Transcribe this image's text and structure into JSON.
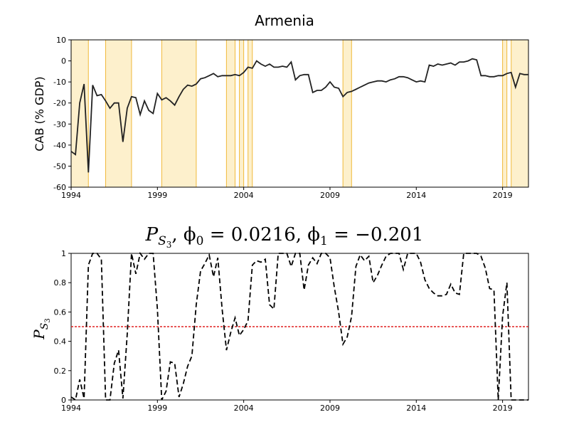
{
  "chart_data": [
    {
      "type": "line",
      "title": "Armenia",
      "ylabel": "CAB (% GDP)",
      "xlabel": "",
      "xlim": [
        1994,
        2020.5
      ],
      "ylim": [
        -60,
        10
      ],
      "xticks": [
        "1994",
        "1999",
        "2004",
        "2009",
        "2014",
        "2019"
      ],
      "yticks": [
        "10",
        "0",
        "-10",
        "-20",
        "-30",
        "-40",
        "-50",
        "-60"
      ],
      "line_color": "#222222",
      "shade_color": "#fdf0cc",
      "shade_edge_color": "#f0b93a",
      "shaded_regions": [
        [
          1994.0,
          1995.0
        ],
        [
          1996.0,
          1997.5
        ],
        [
          1999.25,
          2001.25
        ],
        [
          2003.0,
          2003.5
        ],
        [
          2003.75,
          2004.0
        ],
        [
          2004.25,
          2004.5
        ],
        [
          2009.75,
          2010.25
        ],
        [
          2019.0,
          2019.25
        ],
        [
          2019.5,
          2020.5
        ]
      ],
      "series": [
        {
          "x": [
            1994.0,
            1994.25,
            1994.5,
            1994.75,
            1995.0,
            1995.25,
            1995.5,
            1995.75,
            1996.0,
            1996.25,
            1996.5,
            1996.75,
            1997.0,
            1997.25,
            1997.5,
            1997.75,
            1998.0,
            1998.25,
            1998.5,
            1998.75,
            1999.0,
            1999.25,
            1999.5,
            1999.75,
            2000.0,
            2000.25,
            2000.5,
            2000.75,
            2001.0,
            2001.25,
            2001.5,
            2001.75,
            2002.0,
            2002.25,
            2002.5,
            2002.75,
            2003.0,
            2003.25,
            2003.5,
            2003.75,
            2004.0,
            2004.25,
            2004.5,
            2004.75,
            2005.0,
            2005.25,
            2005.5,
            2005.75,
            2006.0,
            2006.25,
            2006.5,
            2006.75,
            2007.0,
            2007.25,
            2007.5,
            2007.75,
            2008.0,
            2008.25,
            2008.5,
            2008.75,
            2009.0,
            2009.25,
            2009.5,
            2009.75,
            2010.0,
            2010.25,
            2010.5,
            2010.75,
            2011.0,
            2011.25,
            2011.5,
            2011.75,
            2012.0,
            2012.25,
            2012.5,
            2012.75,
            2013.0,
            2013.25,
            2013.5,
            2013.75,
            2014.0,
            2014.25,
            2014.5,
            2014.75,
            2015.0,
            2015.25,
            2015.5,
            2015.75,
            2016.0,
            2016.25,
            2016.5,
            2016.75,
            2017.0,
            2017.25,
            2017.5,
            2017.75,
            2018.0,
            2018.25,
            2018.5,
            2018.75,
            2019.0,
            2019.25,
            2019.5,
            2019.75,
            2020.0,
            2020.25,
            2020.5
          ],
          "values": [
            -43,
            -44.5,
            -20,
            -11,
            -53,
            -11.5,
            -16.5,
            -16,
            -19,
            -22.5,
            -20,
            -20,
            -38.5,
            -22.5,
            -17,
            -17.5,
            -25.5,
            -19,
            -23.5,
            -25,
            -15.5,
            -18.5,
            -17.5,
            -19,
            -21,
            -17,
            -13.5,
            -11.5,
            -12,
            -11,
            -8.5,
            -8,
            -7,
            -6,
            -7.5,
            -7,
            -7,
            -7,
            -6.5,
            -7,
            -5.5,
            -3,
            -3.5,
            0,
            -1.5,
            -2.5,
            -1.5,
            -3,
            -3,
            -2.5,
            -3,
            -0.5,
            -9,
            -7,
            -6.5,
            -6.5,
            -15,
            -14,
            -14,
            -12.5,
            -10,
            -12.5,
            -13,
            -17,
            -15,
            -14.5,
            -13.5,
            -12.5,
            -11.5,
            -10.5,
            -10,
            -9.5,
            -9.5,
            -10,
            -9,
            -8.5,
            -7.5,
            -7.5,
            -8,
            -9,
            -10,
            -9.5,
            -10,
            -2,
            -2.5,
            -1.5,
            -2,
            -1.5,
            -1,
            -2,
            -0.5,
            -0.5,
            0,
            1,
            0.5,
            -7,
            -7,
            -7.5,
            -7.5,
            -7,
            -7,
            -6,
            -5.5,
            -12.5,
            -6,
            -6.5,
            -6.5
          ]
        }
      ]
    },
    {
      "type": "line",
      "title": "P_{S_3}, φ_0 = 0.0216, φ_1 = −0.201",
      "title_parts": {
        "p": "P",
        "s": "S",
        "three": "3",
        "rest": ", ϕ",
        "zero": "0",
        "mid": " = 0.0216, ϕ",
        "one": "1",
        "end": " = −0.201"
      },
      "ylabel": "P_{S_3}",
      "ylabel_parts": {
        "p": "P",
        "s": "S",
        "three": "3"
      },
      "xlabel": "",
      "xlim": [
        1994,
        2020.5
      ],
      "ylim": [
        0,
        1
      ],
      "xticks": [
        "1994",
        "1999",
        "2004",
        "2009",
        "2014",
        "2019"
      ],
      "yticks": [
        "1",
        "0.8",
        "0.6",
        "0.4",
        "0.2",
        "0"
      ],
      "line_color": "#000000",
      "threshold": 0.5,
      "threshold_color": "#e02020",
      "series": [
        {
          "x": [
            1994.0,
            1994.25,
            1994.5,
            1994.75,
            1995.0,
            1995.25,
            1995.5,
            1995.75,
            1996.0,
            1996.25,
            1996.5,
            1996.75,
            1997.0,
            1997.25,
            1997.5,
            1997.75,
            1998.0,
            1998.25,
            1998.5,
            1998.75,
            1999.0,
            1999.25,
            1999.5,
            1999.75,
            2000.0,
            2000.25,
            2000.5,
            2000.75,
            2001.0,
            2001.25,
            2001.5,
            2001.75,
            2002.0,
            2002.25,
            2002.5,
            2002.75,
            2003.0,
            2003.25,
            2003.5,
            2003.75,
            2004.0,
            2004.25,
            2004.5,
            2004.75,
            2005.0,
            2005.25,
            2005.5,
            2005.75,
            2006.0,
            2006.25,
            2006.5,
            2006.75,
            2007.0,
            2007.25,
            2007.5,
            2007.75,
            2008.0,
            2008.25,
            2008.5,
            2008.75,
            2009.0,
            2009.25,
            2009.5,
            2009.75,
            2010.0,
            2010.25,
            2010.5,
            2010.75,
            2011.0,
            2011.25,
            2011.5,
            2011.75,
            2012.0,
            2012.25,
            2012.5,
            2012.75,
            2013.0,
            2013.25,
            2013.5,
            2013.75,
            2014.0,
            2014.25,
            2014.5,
            2014.75,
            2015.0,
            2015.25,
            2015.5,
            2015.75,
            2016.0,
            2016.25,
            2016.5,
            2016.75,
            2017.0,
            2017.25,
            2017.5,
            2017.75,
            2018.0,
            2018.25,
            2018.5,
            2018.75,
            2019.0,
            2019.25,
            2019.5,
            2019.75,
            2020.0,
            2020.25,
            2020.5
          ],
          "values": [
            0.02,
            0,
            0.14,
            0.01,
            0.92,
            1,
            1,
            0.96,
            0,
            0,
            0.25,
            0.34,
            0.01,
            0.45,
            1,
            0.86,
            1,
            0.96,
            1,
            1,
            0.62,
            0,
            0.06,
            0.26,
            0.25,
            0.02,
            0.11,
            0.23,
            0.3,
            0.65,
            0.88,
            0.93,
            0.99,
            0.84,
            0.97,
            0.62,
            0.34,
            0.46,
            0.56,
            0.44,
            0.48,
            0.54,
            0.92,
            0.95,
            0.94,
            0.96,
            0.65,
            0.62,
            1,
            1,
            1,
            0.91,
            1,
            1,
            0.75,
            0.92,
            0.97,
            0.93,
            1,
            1,
            0.97,
            0.77,
            0.6,
            0.38,
            0.43,
            0.57,
            0.91,
            0.99,
            0.95,
            0.98,
            0.8,
            0.85,
            0.92,
            0.98,
            1,
            1,
            1,
            0.89,
            1,
            1,
            1,
            0.94,
            0.82,
            0.76,
            0.73,
            0.71,
            0.71,
            0.72,
            0.79,
            0.73,
            0.72,
            1,
            1,
            1,
            1,
            0.98,
            0.9,
            0.76,
            0.75,
            0,
            0.57,
            0.8,
            0,
            0,
            0,
            0,
            0
          ]
        }
      ]
    }
  ]
}
